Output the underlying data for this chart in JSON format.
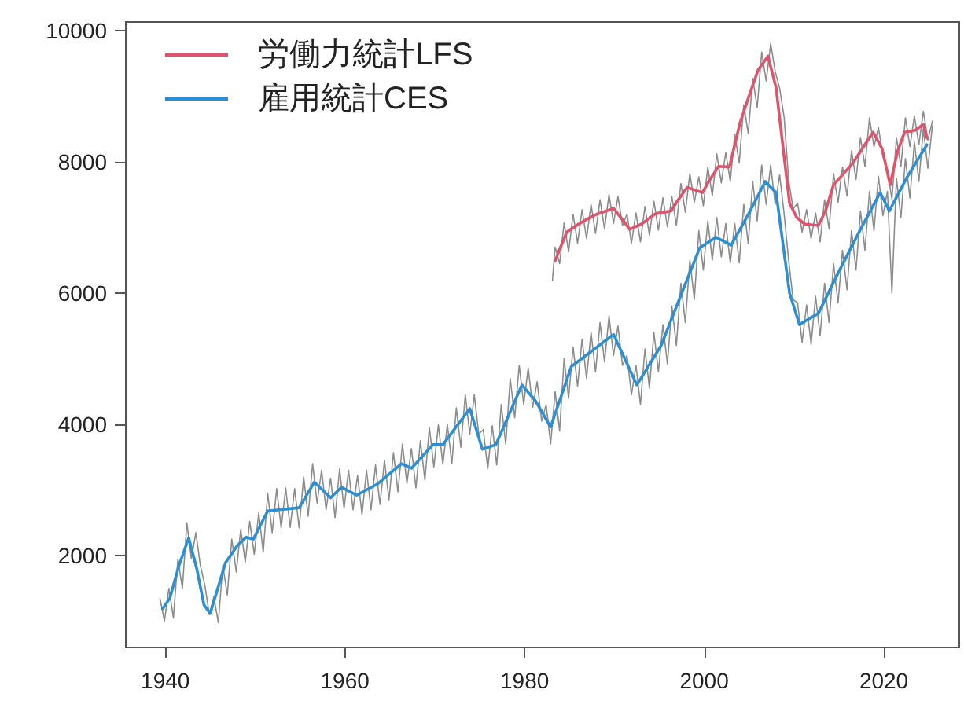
{
  "chart_data": {
    "type": "line",
    "xlim": [
      1935.6,
      2028.4
    ],
    "xticks": [
      1940,
      1960,
      1980,
      2000,
      2020
    ],
    "ylim": [
      600,
      10130
    ],
    "yticks": [
      2000,
      4000,
      6000,
      8000,
      10000
    ],
    "grid": false,
    "legend": "top left",
    "marker": "none",
    "line_style": "solid",
    "series": [
      {
        "color": "#8c8c8c",
        "x": [
          1939.4,
          1939.9,
          1940.4,
          1940.9,
          1941.4,
          1941.9,
          1942.4,
          1942.9,
          1943.4,
          1943.9,
          1944.4,
          1944.9,
          1945.4,
          1945.9,
          1946.4,
          1946.9,
          1947.4,
          1947.9,
          1948.4,
          1948.9,
          1949.4,
          1949.9,
          1950.4,
          1950.9,
          1951.4,
          1951.9,
          1952.4,
          1952.9,
          1953.4,
          1953.9,
          1954.4,
          1954.9,
          1955.4,
          1955.9,
          1956.4,
          1956.9,
          1957.4,
          1957.9,
          1958.4,
          1958.9,
          1959.4,
          1959.9,
          1960.4,
          1960.9,
          1961.4,
          1961.9,
          1962.4,
          1962.9,
          1963.4,
          1963.9,
          1964.4,
          1964.9,
          1965.4,
          1965.9,
          1966.4,
          1966.9,
          1967.4,
          1967.9,
          1968.4,
          1968.9,
          1969.4,
          1969.9,
          1970.4,
          1970.9,
          1971.4,
          1971.9,
          1972.4,
          1972.9,
          1973.4,
          1973.9,
          1974.4,
          1974.9,
          1975.4,
          1975.9,
          1976.4,
          1976.9,
          1977.4,
          1977.9,
          1978.4,
          1978.9,
          1979.4,
          1979.9,
          1980.4,
          1980.9,
          1981.4,
          1981.9,
          1982.4,
          1982.9,
          1983.4,
          1983.9,
          1984.4,
          1984.9,
          1985.4,
          1985.9,
          1986.4,
          1986.9,
          1987.4,
          1987.9,
          1988.4,
          1988.9,
          1989.4,
          1989.9,
          1990.4,
          1990.9,
          1991.4,
          1991.9,
          1992.4,
          1992.9,
          1993.4,
          1993.9,
          1994.4,
          1994.9,
          1995.4,
          1995.9,
          1996.4,
          1996.9,
          1997.4,
          1997.9,
          1998.4,
          1998.9,
          1999.4,
          1999.9,
          2000.4,
          2000.9,
          2001.4,
          2001.9,
          2002.4,
          2002.9,
          2003.4,
          2003.9,
          2004.4,
          2004.9,
          2005.4,
          2005.9,
          2006.4,
          2006.9,
          2007.4,
          2007.9,
          2008.4,
          2008.9,
          2009.4,
          2009.9,
          2010.4,
          2010.9,
          2011.4,
          2011.9,
          2012.4,
          2012.9,
          2013.4,
          2013.9,
          2014.4,
          2014.9,
          2015.4,
          2015.9,
          2016.4,
          2016.9,
          2017.4,
          2017.9,
          2018.4,
          2018.9,
          2019.4,
          2019.9,
          2020.4,
          2020.9,
          2021.4,
          2021.9,
          2022.4,
          2022.9,
          2023.4,
          2023.9,
          2024.4,
          2024.9,
          2025.4
        ],
        "values": [
          1350,
          1000,
          1500,
          1050,
          1950,
          1500,
          2500,
          1950,
          2350,
          1850,
          1550,
          1100,
          1370,
          980,
          1850,
          1400,
          2250,
          1750,
          2400,
          1900,
          2520,
          2020,
          2650,
          2050,
          2950,
          2350,
          3020,
          2420,
          3030,
          2430,
          3020,
          2420,
          3200,
          2600,
          3400,
          2800,
          3300,
          2700,
          3180,
          2580,
          3320,
          2720,
          3300,
          2700,
          3220,
          2620,
          3300,
          2700,
          3380,
          2780,
          3450,
          2850,
          3570,
          2970,
          3700,
          3100,
          3630,
          3030,
          3750,
          3150,
          3950,
          3350,
          3990,
          3390,
          4000,
          3400,
          4250,
          3650,
          4450,
          3850,
          4450,
          3850,
          3920,
          3320,
          3980,
          3380,
          4300,
          3700,
          4700,
          4100,
          4900,
          4300,
          4860,
          4260,
          4650,
          4050,
          4300,
          3700,
          4500,
          3900,
          5000,
          4400,
          5180,
          4580,
          5300,
          4700,
          5400,
          4800,
          5550,
          4950,
          5650,
          5050,
          5500,
          4900,
          5050,
          4450,
          4900,
          4300,
          5150,
          4550,
          5400,
          4800,
          5520,
          4920,
          5800,
          5200,
          6150,
          5550,
          6500,
          5900,
          6950,
          6350,
          7100,
          6500,
          7150,
          6550,
          7060,
          6460,
          7060,
          6460,
          7350,
          6750,
          7700,
          7100,
          7950,
          7350,
          7950,
          7350,
          7800,
          7200,
          6500,
          5900,
          5850,
          5250,
          5820,
          5220,
          5950,
          5350,
          6150,
          5550,
          6450,
          5850,
          6650,
          6050,
          6950,
          6350,
          7250,
          6650,
          7550,
          6950,
          7780,
          7180,
          7550,
          6000,
          7750,
          7150,
          8050,
          7450,
          8300,
          7700,
          8500,
          7900,
          8550
        ]
      },
      {
        "color": "#8c8c8c",
        "x": [
          1983.1,
          1983.4,
          1983.9,
          1984.4,
          1984.9,
          1985.4,
          1985.9,
          1986.4,
          1986.9,
          1987.4,
          1987.9,
          1988.4,
          1988.9,
          1989.4,
          1989.9,
          1990.4,
          1990.9,
          1991.4,
          1991.9,
          1992.4,
          1992.9,
          1993.4,
          1993.9,
          1994.4,
          1994.9,
          1995.4,
          1995.9,
          1996.4,
          1996.9,
          1997.4,
          1997.9,
          1998.4,
          1998.9,
          1999.4,
          1999.9,
          2000.4,
          2000.9,
          2001.4,
          2001.9,
          2002.4,
          2002.9,
          2003.4,
          2003.9,
          2004.4,
          2004.9,
          2005.4,
          2005.9,
          2006.4,
          2006.9,
          2007.4,
          2007.9,
          2008.4,
          2008.9,
          2009.4,
          2009.9,
          2010.4,
          2010.9,
          2011.4,
          2011.9,
          2012.4,
          2012.9,
          2013.4,
          2013.9,
          2014.4,
          2014.9,
          2015.4,
          2015.9,
          2016.4,
          2016.9,
          2017.4,
          2017.9,
          2018.4,
          2018.9,
          2019.4,
          2019.9,
          2020.4,
          2020.9,
          2021.4,
          2021.9,
          2022.4,
          2022.9,
          2023.4,
          2023.9,
          2024.4,
          2024.9,
          2025.4
        ],
        "values": [
          6190,
          6700,
          6450,
          7070,
          6630,
          7200,
          6760,
          7270,
          6830,
          7350,
          6910,
          7420,
          6980,
          7500,
          7060,
          7470,
          7030,
          7200,
          6760,
          7220,
          6780,
          7320,
          6880,
          7400,
          6960,
          7450,
          7010,
          7470,
          7030,
          7670,
          7230,
          7820,
          7380,
          7770,
          7330,
          7920,
          7480,
          8120,
          7680,
          8140,
          7700,
          8420,
          7980,
          8870,
          8430,
          9270,
          8830,
          9670,
          9230,
          9800,
          9380,
          9120,
          8680,
          7720,
          7280,
          7370,
          6930,
          7270,
          6830,
          7220,
          6780,
          7420,
          6980,
          7820,
          7380,
          7920,
          7480,
          8170,
          7730,
          8370,
          7930,
          8670,
          8230,
          8520,
          8080,
          7870,
          7430,
          8370,
          7930,
          8670,
          8230,
          8700,
          8260,
          8770,
          8330,
          8620
        ]
      },
      {
        "name": "労働力統計LFS",
        "color": "#df536b",
        "x": [
          1983.4,
          1984,
          1984.7,
          1986,
          1987,
          1988,
          1989.9,
          1991,
          1991.7,
          1993,
          1994.6,
          1996.3,
          1997,
          1998.1,
          1999.8,
          2000.5,
          2001.6,
          2002.8,
          2004,
          2005.1,
          2006,
          2007.1,
          2008,
          2009.5,
          2010.3,
          2011.2,
          2012.7,
          2013.5,
          2014.4,
          2016.5,
          2018.8,
          2019.8,
          2020.7,
          2021.5,
          2022.3,
          2023.5,
          2024.4,
          2024.8
        ],
        "values": [
          6490,
          6700,
          6930,
          7050,
          7130,
          7200,
          7290,
          7100,
          6970,
          7050,
          7210,
          7250,
          7400,
          7610,
          7530,
          7700,
          7930,
          7920,
          8600,
          9050,
          9400,
          9610,
          9130,
          7370,
          7150,
          7050,
          7030,
          7250,
          7650,
          7970,
          8450,
          8200,
          7650,
          8150,
          8450,
          8480,
          8570,
          8360
        ]
      },
      {
        "name": "雇用統計CES",
        "color": "#2b8fd6",
        "x": [
          1939.7,
          1940.5,
          1941.5,
          1942.6,
          1943.5,
          1944.3,
          1945,
          1946.7,
          1948,
          1949,
          1949.8,
          1951.4,
          1954.9,
          1956.6,
          1958.4,
          1959.6,
          1961.3,
          1963.6,
          1966.3,
          1967.4,
          1969.8,
          1970.9,
          1973.9,
          1975.3,
          1976.8,
          1979.7,
          1981.2,
          1982.9,
          1985.2,
          1989.9,
          1992.5,
          1995.2,
          1997.5,
          1999.5,
          2001.3,
          2003,
          2004.8,
          2006.8,
          2008,
          2009.5,
          2010.6,
          2012.7,
          2015,
          2017.4,
          2019.6,
          2020.6,
          2022.6,
          2024.8
        ],
        "values": [
          1190,
          1350,
          1840,
          2270,
          1800,
          1250,
          1120,
          1890,
          2150,
          2280,
          2250,
          2680,
          2730,
          3120,
          2880,
          3040,
          2920,
          3090,
          3400,
          3330,
          3690,
          3690,
          4240,
          3620,
          3690,
          4600,
          4360,
          3960,
          4880,
          5370,
          4600,
          5200,
          6000,
          6690,
          6850,
          6730,
          7170,
          7700,
          7530,
          6000,
          5520,
          5690,
          6330,
          6970,
          7530,
          7250,
          7770,
          8260
        ]
      }
    ]
  }
}
